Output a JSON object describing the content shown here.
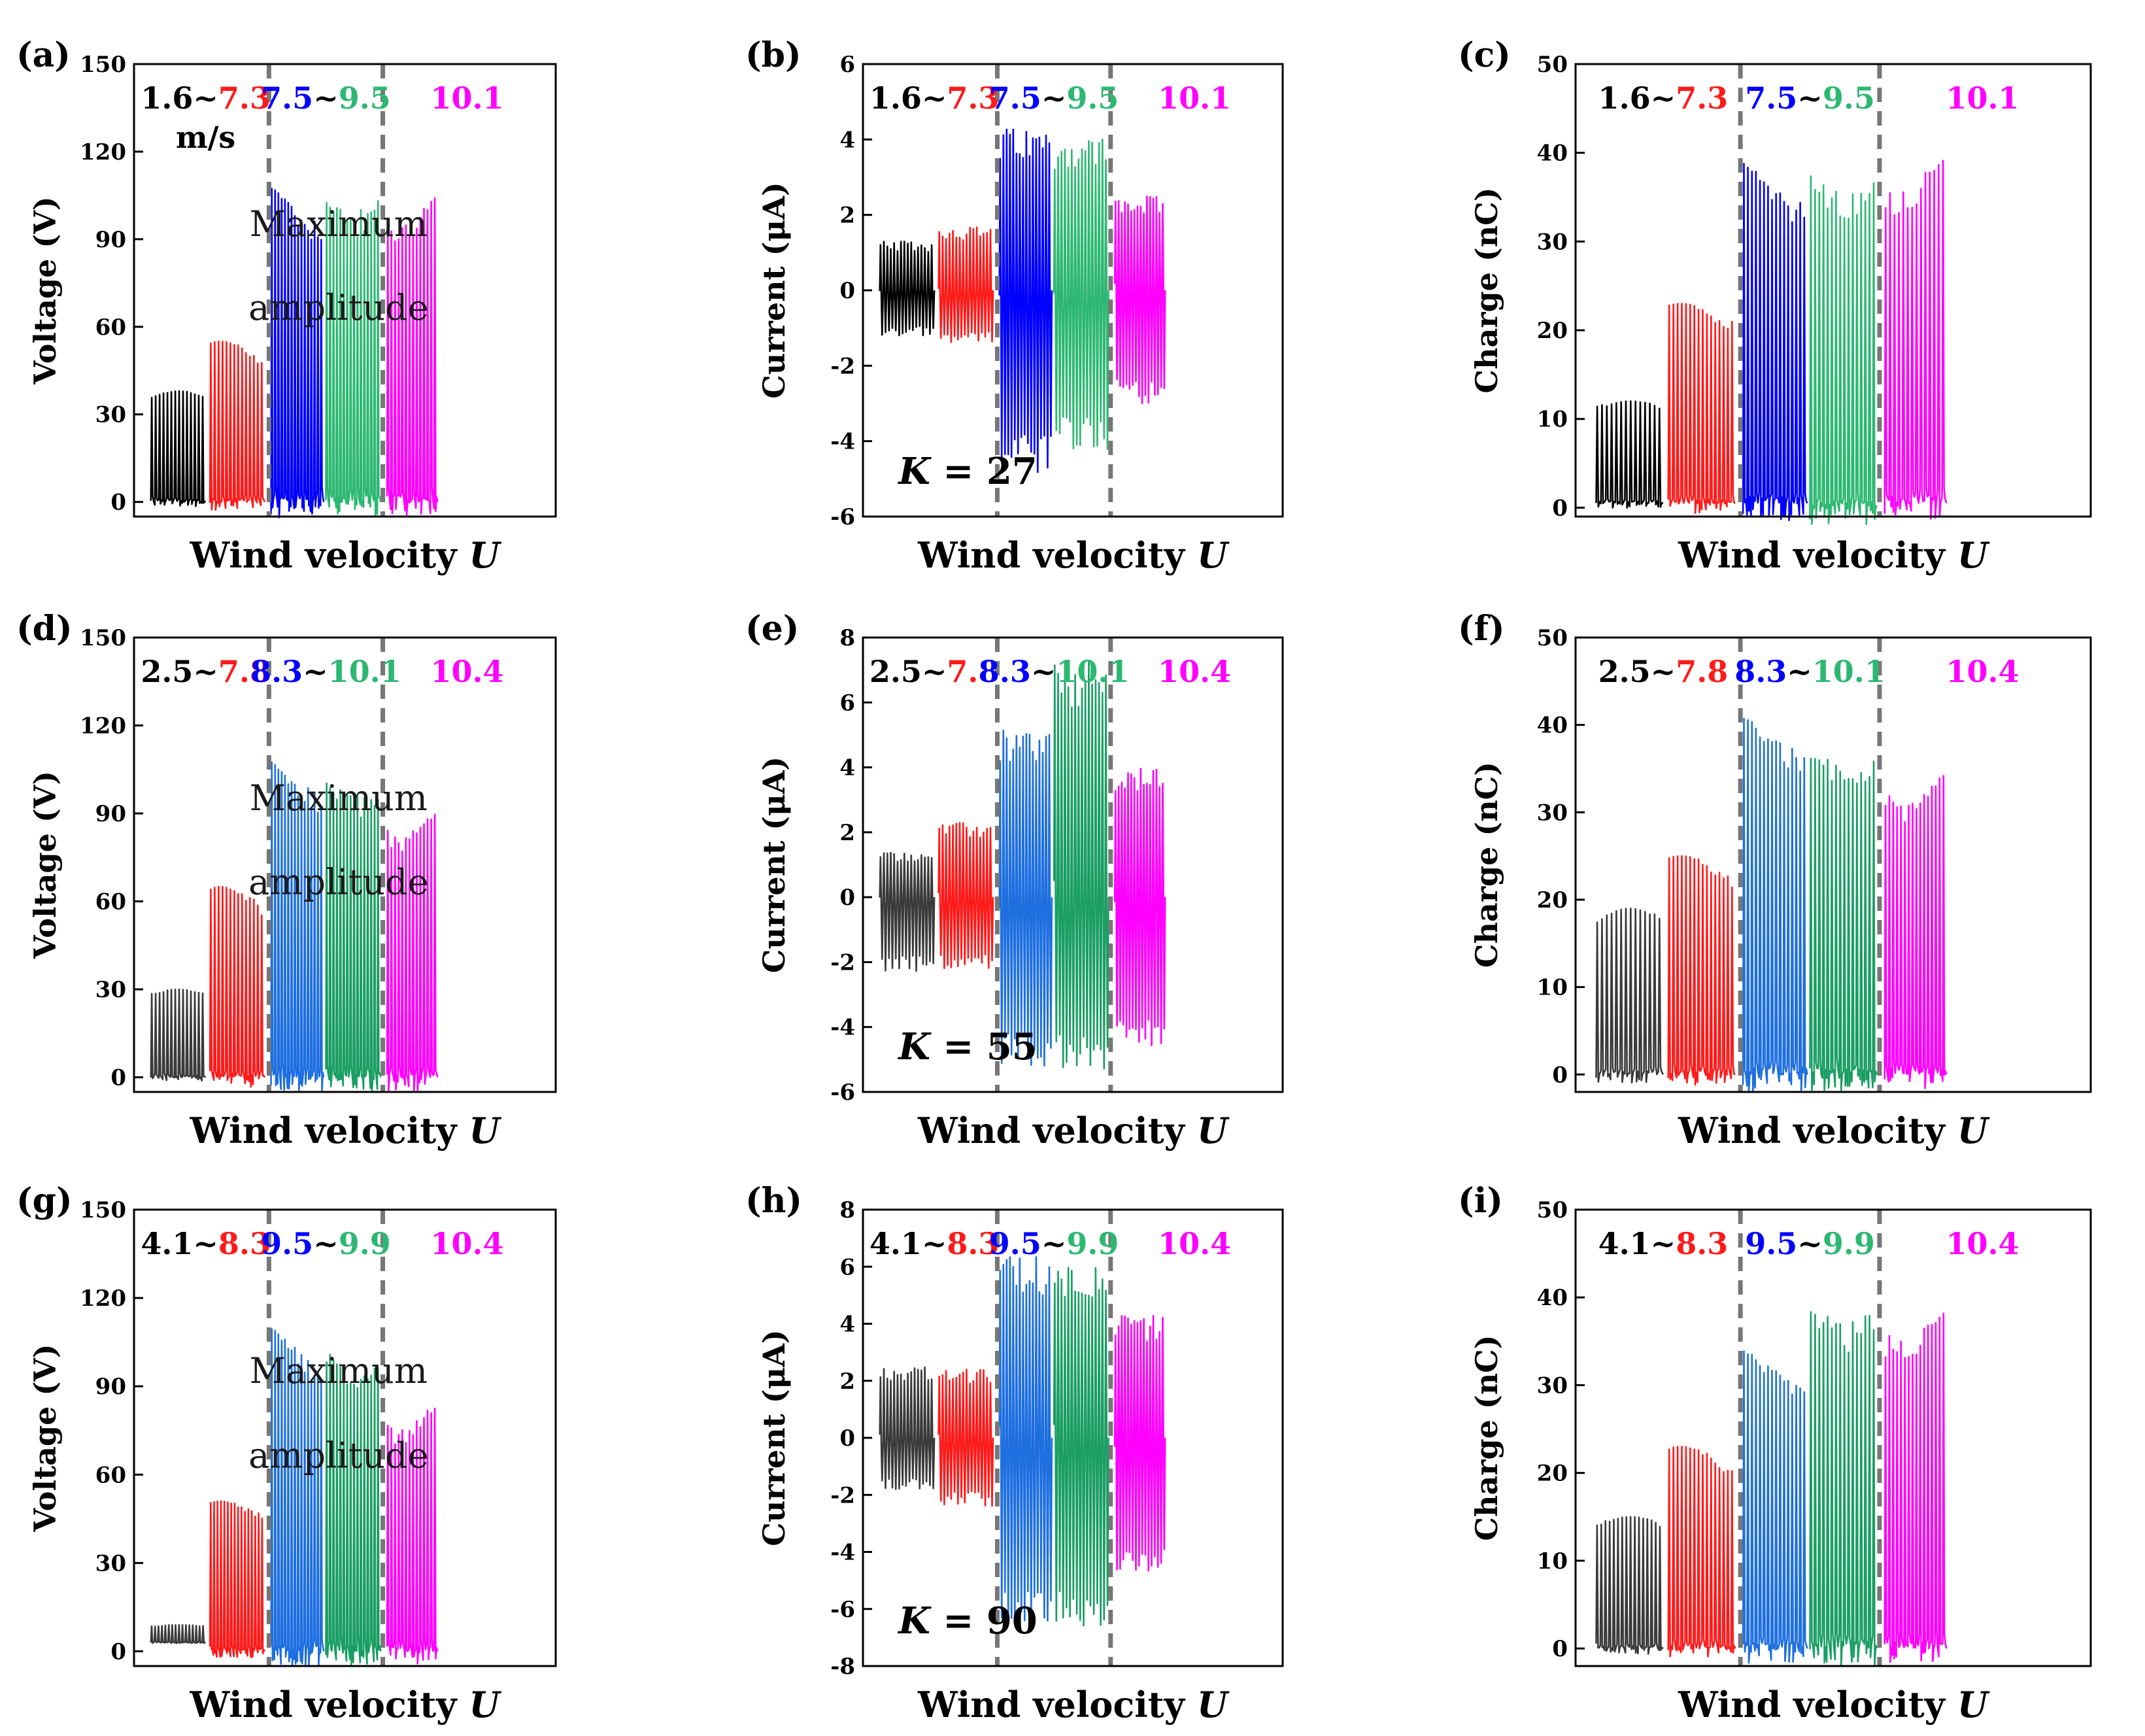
{
  "colors": {
    "black": "#000000",
    "red": "#ff1a1a",
    "blue": "#0000ff",
    "blue2": "#1e6fe0",
    "green": "#2db872",
    "green2": "#1a9e63",
    "magenta": "#ff00ff",
    "darkgray": "#3a3a3a",
    "divider": "#777777"
  },
  "chart_data": [
    {
      "panel": "(a)",
      "type": "line",
      "quantity": "voltage",
      "ylabel": "Voltage (V)",
      "xlabel": "Wind velocity U",
      "ylim": [
        -5,
        150
      ],
      "yticks": [
        0,
        30,
        60,
        90,
        120,
        150
      ],
      "ytick_labels": [
        "0",
        "30",
        "60",
        "90",
        "120",
        "150"
      ],
      "velocity_labels": [
        {
          "text": "1.6~",
          "color": "black"
        },
        {
          "text": "7.3",
          "color": "red"
        },
        {
          "text": "7.5",
          "color": "blue"
        },
        {
          "text": "~",
          "color": "black"
        },
        {
          "text": "9.5",
          "color": "green"
        },
        {
          "text": "10.1",
          "color": "magenta"
        }
      ],
      "unit_note": "m/s",
      "note": [
        "Maximum",
        "amplitude"
      ],
      "series": [
        {
          "name": "1.6 m/s",
          "color": "black",
          "min": 0,
          "max": 38,
          "cycles": 14
        },
        {
          "name": "7.3 m/s",
          "color": "red",
          "min": 0,
          "max": 55,
          "cycles": 14
        },
        {
          "name": "7.5 m/s",
          "color": "blue",
          "min": 0,
          "max": 108,
          "cycles": 16
        },
        {
          "name": "9.5 m/s",
          "color": "green",
          "min": 0,
          "max": 110,
          "cycles": 16
        },
        {
          "name": "10.1 m/s",
          "color": "magenta",
          "min": 0,
          "max": 106,
          "cycles": 14
        }
      ]
    },
    {
      "panel": "(b)",
      "type": "line",
      "quantity": "current",
      "ylabel": "Current (μA)",
      "xlabel": "Wind velocity U",
      "ylim": [
        -6,
        6
      ],
      "yticks": [
        -6,
        -4,
        -2,
        0,
        2,
        4,
        6
      ],
      "ytick_labels": [
        "-6",
        "-4",
        "-2",
        "0",
        "2",
        "4",
        "6"
      ],
      "velocity_labels": [
        {
          "text": "1.6~",
          "color": "black"
        },
        {
          "text": "7.3",
          "color": "red"
        },
        {
          "text": "7.5",
          "color": "blue"
        },
        {
          "text": "~",
          "color": "black"
        },
        {
          "text": "9.5",
          "color": "green"
        },
        {
          "text": "10.1",
          "color": "magenta"
        }
      ],
      "k_label": "K = 27",
      "series": [
        {
          "name": "1.6 m/s",
          "color": "black",
          "min": -1.2,
          "max": 1.3,
          "cycles": 16
        },
        {
          "name": "7.3 m/s",
          "color": "red",
          "min": -1.4,
          "max": 1.7,
          "cycles": 16
        },
        {
          "name": "7.5 m/s",
          "color": "blue",
          "min": -4.9,
          "max": 4.3,
          "cycles": 16
        },
        {
          "name": "9.5 m/s",
          "color": "green",
          "min": -4.3,
          "max": 4.1,
          "cycles": 16
        },
        {
          "name": "10.1 m/s",
          "color": "magenta",
          "min": -3.0,
          "max": 2.5,
          "cycles": 16
        }
      ]
    },
    {
      "panel": "(c)",
      "type": "line",
      "quantity": "charge",
      "ylabel": "Charge (nC)",
      "xlabel": "Wind velocity U",
      "ylim": [
        -1,
        50
      ],
      "yticks": [
        0,
        10,
        20,
        30,
        40,
        50
      ],
      "ytick_labels": [
        "0",
        "10",
        "20",
        "30",
        "40",
        "50"
      ],
      "velocity_labels": [
        {
          "text": "1.6~",
          "color": "black"
        },
        {
          "text": "7.3",
          "color": "red"
        },
        {
          "text": "7.5",
          "color": "blue"
        },
        {
          "text": "~",
          "color": "black"
        },
        {
          "text": "9.5",
          "color": "green"
        },
        {
          "text": "10.1",
          "color": "magenta"
        }
      ],
      "series": [
        {
          "name": "1.6 m/s",
          "color": "black",
          "min": 0.5,
          "max": 12,
          "cycles": 14
        },
        {
          "name": "7.3 m/s",
          "color": "red",
          "min": 0.5,
          "max": 23,
          "cycles": 16
        },
        {
          "name": "7.5 m/s",
          "color": "blue",
          "min": 0.5,
          "max": 39,
          "cycles": 16
        },
        {
          "name": "9.5 m/s",
          "color": "green",
          "min": 0,
          "max": 39,
          "cycles": 16
        },
        {
          "name": "10.1 m/s",
          "color": "magenta",
          "min": 0.5,
          "max": 40,
          "cycles": 14
        }
      ]
    },
    {
      "panel": "(d)",
      "type": "line",
      "quantity": "voltage",
      "ylabel": "Voltage (V)",
      "xlabel": "Wind velocity U",
      "ylim": [
        -5,
        150
      ],
      "yticks": [
        0,
        30,
        60,
        90,
        120,
        150
      ],
      "ytick_labels": [
        "0",
        "30",
        "60",
        "90",
        "120",
        "150"
      ],
      "velocity_labels": [
        {
          "text": "2.5~",
          "color": "black"
        },
        {
          "text": "7.8",
          "color": "red"
        },
        {
          "text": "8.3",
          "color": "blue"
        },
        {
          "text": "~",
          "color": "black"
        },
        {
          "text": "10.1",
          "color": "green"
        },
        {
          "text": "10.4",
          "color": "magenta"
        }
      ],
      "note": [
        "Maximum",
        "amplitude"
      ],
      "series": [
        {
          "name": "2.5 m/s",
          "color": "darkgray",
          "min": 0,
          "max": 30,
          "cycles": 14
        },
        {
          "name": "7.8 m/s",
          "color": "red",
          "min": 0,
          "max": 65,
          "cycles": 14
        },
        {
          "name": "8.3 m/s",
          "color": "blue2",
          "min": 0,
          "max": 108,
          "cycles": 16
        },
        {
          "name": "10.1 m/s",
          "color": "green2",
          "min": 0,
          "max": 106,
          "cycles": 16
        },
        {
          "name": "10.4 m/s",
          "color": "magenta",
          "min": 0,
          "max": 92,
          "cycles": 14
        }
      ]
    },
    {
      "panel": "(e)",
      "type": "line",
      "quantity": "current",
      "ylabel": "Current (μA)",
      "xlabel": "Wind velocity U",
      "ylim": [
        -6,
        8
      ],
      "yticks": [
        -6,
        -4,
        -2,
        0,
        2,
        4,
        6,
        8
      ],
      "ytick_labels": [
        "-6",
        "-4",
        "-2",
        "0",
        "2",
        "4",
        "6",
        "8"
      ],
      "velocity_labels": [
        {
          "text": "2.5~",
          "color": "black"
        },
        {
          "text": "7.8",
          "color": "red"
        },
        {
          "text": "8.3",
          "color": "blue"
        },
        {
          "text": "~",
          "color": "black"
        },
        {
          "text": "10.1",
          "color": "green"
        },
        {
          "text": "10.4",
          "color": "magenta"
        }
      ],
      "k_label": "K = 55",
      "series": [
        {
          "name": "2.5 m/s",
          "color": "darkgray",
          "min": -2.3,
          "max": 1.4,
          "cycles": 16
        },
        {
          "name": "7.8 m/s",
          "color": "red",
          "min": -2.2,
          "max": 2.3,
          "cycles": 16
        },
        {
          "name": "8.3 m/s",
          "color": "blue2",
          "min": -5.3,
          "max": 5.2,
          "cycles": 16
        },
        {
          "name": "10.1 m/s",
          "color": "green2",
          "min": -5.4,
          "max": 7.3,
          "cycles": 16
        },
        {
          "name": "10.4 m/s",
          "color": "magenta",
          "min": -4.7,
          "max": 4.0,
          "cycles": 16
        }
      ]
    },
    {
      "panel": "(f)",
      "type": "line",
      "quantity": "charge",
      "ylabel": "Charge (nC)",
      "xlabel": "Wind velocity U",
      "ylim": [
        -2,
        50
      ],
      "yticks": [
        0,
        10,
        20,
        30,
        40,
        50
      ],
      "ytick_labels": [
        "0",
        "10",
        "20",
        "30",
        "40",
        "50"
      ],
      "velocity_labels": [
        {
          "text": "2.5~",
          "color": "black"
        },
        {
          "text": "7.8",
          "color": "red"
        },
        {
          "text": "8.3",
          "color": "blue"
        },
        {
          "text": "~",
          "color": "black"
        },
        {
          "text": "10.1",
          "color": "green"
        },
        {
          "text": "10.4",
          "color": "magenta"
        }
      ],
      "series": [
        {
          "name": "2.5 m/s",
          "color": "darkgray",
          "min": 0,
          "max": 19,
          "cycles": 14
        },
        {
          "name": "7.8 m/s",
          "color": "red",
          "min": 0,
          "max": 25,
          "cycles": 16
        },
        {
          "name": "8.3 m/s",
          "color": "blue2",
          "min": 0,
          "max": 41,
          "cycles": 16
        },
        {
          "name": "10.1 m/s",
          "color": "green2",
          "min": 0,
          "max": 39,
          "cycles": 16
        },
        {
          "name": "10.4 m/s",
          "color": "magenta",
          "min": 0,
          "max": 35,
          "cycles": 16
        }
      ]
    },
    {
      "panel": "(g)",
      "type": "line",
      "quantity": "voltage",
      "ylabel": "Voltage (V)",
      "xlabel": "Wind velocity U",
      "ylim": [
        -5,
        150
      ],
      "yticks": [
        0,
        30,
        60,
        90,
        120,
        150
      ],
      "ytick_labels": [
        "0",
        "30",
        "60",
        "90",
        "120",
        "150"
      ],
      "velocity_labels": [
        {
          "text": "4.1~",
          "color": "black"
        },
        {
          "text": "8.3",
          "color": "red"
        },
        {
          "text": "9.5",
          "color": "blue"
        },
        {
          "text": "~",
          "color": "black"
        },
        {
          "text": "9.9",
          "color": "green"
        },
        {
          "text": "10.4",
          "color": "magenta"
        }
      ],
      "note": [
        "Maximum",
        "amplitude"
      ],
      "series": [
        {
          "name": "4.1 m/s",
          "color": "darkgray",
          "min": 3,
          "max": 9,
          "cycles": 16
        },
        {
          "name": "8.3 m/s",
          "color": "red",
          "min": 0,
          "max": 51,
          "cycles": 16
        },
        {
          "name": "9.5 m/s",
          "color": "blue2",
          "min": 0,
          "max": 110,
          "cycles": 16
        },
        {
          "name": "9.9 m/s",
          "color": "green2",
          "min": 0,
          "max": 106,
          "cycles": 16
        },
        {
          "name": "10.4 m/s",
          "color": "magenta",
          "min": 0,
          "max": 85,
          "cycles": 14
        }
      ]
    },
    {
      "panel": "(h)",
      "type": "line",
      "quantity": "current",
      "ylabel": "Current (μA)",
      "xlabel": "Wind velocity U",
      "ylim": [
        -8,
        8
      ],
      "yticks": [
        -8,
        -6,
        -4,
        -2,
        0,
        2,
        4,
        6,
        8
      ],
      "ytick_labels": [
        "-8",
        "-6",
        "-4",
        "-2",
        "0",
        "2",
        "4",
        "6",
        "8"
      ],
      "velocity_labels": [
        {
          "text": "4.1~",
          "color": "black"
        },
        {
          "text": "8.3",
          "color": "red"
        },
        {
          "text": "9.5",
          "color": "blue"
        },
        {
          "text": "~",
          "color": "black"
        },
        {
          "text": "9.9",
          "color": "green"
        },
        {
          "text": "10.4",
          "color": "magenta"
        }
      ],
      "k_label": "K = 90",
      "series": [
        {
          "name": "4.1 m/s",
          "color": "darkgray",
          "min": -1.8,
          "max": 2.5,
          "cycles": 16
        },
        {
          "name": "8.3 m/s",
          "color": "red",
          "min": -2.4,
          "max": 2.4,
          "cycles": 16
        },
        {
          "name": "9.5 m/s",
          "color": "blue2",
          "min": -6.7,
          "max": 6.4,
          "cycles": 16
        },
        {
          "name": "9.9 m/s",
          "color": "green2",
          "min": -6.6,
          "max": 6.2,
          "cycles": 16
        },
        {
          "name": "10.4 m/s",
          "color": "magenta",
          "min": -4.8,
          "max": 4.3,
          "cycles": 16
        }
      ]
    },
    {
      "panel": "(i)",
      "type": "line",
      "quantity": "charge",
      "ylabel": "Charge (nC)",
      "xlabel": "Wind velocity U",
      "ylim": [
        -2,
        50
      ],
      "yticks": [
        0,
        10,
        20,
        30,
        40,
        50
      ],
      "ytick_labels": [
        "0",
        "10",
        "20",
        "30",
        "40",
        "50"
      ],
      "velocity_labels": [
        {
          "text": "4.1~",
          "color": "black"
        },
        {
          "text": "8.3",
          "color": "red"
        },
        {
          "text": "9.5",
          "color": "blue"
        },
        {
          "text": "~",
          "color": "black"
        },
        {
          "text": "9.9",
          "color": "green"
        },
        {
          "text": "10.4",
          "color": "magenta"
        }
      ],
      "series": [
        {
          "name": "4.1 m/s",
          "color": "darkgray",
          "min": 0,
          "max": 15,
          "cycles": 16
        },
        {
          "name": "8.3 m/s",
          "color": "red",
          "min": 0,
          "max": 23,
          "cycles": 16
        },
        {
          "name": "9.5 m/s",
          "color": "blue2",
          "min": 0,
          "max": 34,
          "cycles": 16
        },
        {
          "name": "9.9 m/s",
          "color": "green2",
          "min": 0,
          "max": 41,
          "cycles": 16
        },
        {
          "name": "10.4 m/s",
          "color": "magenta",
          "min": 0,
          "max": 39,
          "cycles": 16
        }
      ]
    }
  ]
}
